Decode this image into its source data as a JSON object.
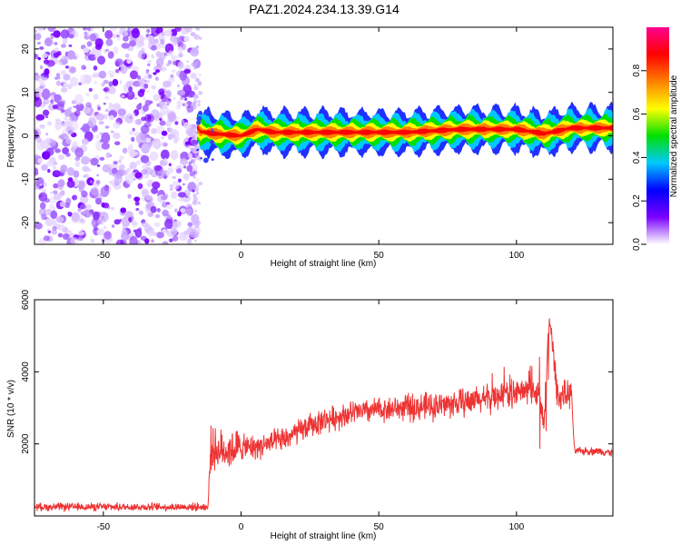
{
  "title": "PAZ1.2024.234.13.39.G14",
  "spectrogram": {
    "xlabel": "Height of straight line (km)",
    "ylabel": "Frequency (Hz)",
    "xlim": [
      -75,
      135
    ],
    "ylim": [
      -25,
      25
    ],
    "xticks": [
      "-50",
      "0",
      "50",
      "100"
    ],
    "xtick_values": [
      -50,
      0,
      50,
      100
    ],
    "yticks": [
      "-20",
      "-10",
      "0",
      "10",
      "20"
    ],
    "ytick_values": [
      -20,
      -10,
      0,
      10,
      20
    ],
    "noise_region_x": [
      -75,
      -16
    ],
    "signal_region_x": [
      -16,
      135
    ],
    "signal_center_hz": [
      {
        "x": -15,
        "y": 1.0
      },
      {
        "x": -10,
        "y": 0.5
      },
      {
        "x": 0,
        "y": 0.0
      },
      {
        "x": 6,
        "y": 1.5
      },
      {
        "x": 12,
        "y": 0.8
      },
      {
        "x": 30,
        "y": 0.8
      },
      {
        "x": 60,
        "y": 0.8
      },
      {
        "x": 80,
        "y": 1.5
      },
      {
        "x": 100,
        "y": 1.5
      },
      {
        "x": 110,
        "y": 0.5
      },
      {
        "x": 120,
        "y": 1.8
      },
      {
        "x": 135,
        "y": 1.8
      }
    ]
  },
  "colorbar": {
    "label": "Normalized spectral amplitude",
    "ticks": [
      "0.0",
      "0.2",
      "0.4",
      "0.6",
      "0.8"
    ],
    "tick_values": [
      0.0,
      0.2,
      0.4,
      0.6,
      0.8
    ],
    "range": [
      0,
      1
    ],
    "stops": [
      "#ffffff",
      "#7a00ff",
      "#0000ff",
      "#00c8ff",
      "#00e000",
      "#ffff00",
      "#ff8000",
      "#ff0000",
      "#ff0090"
    ]
  },
  "chart_data": {
    "type": "line",
    "xlabel": "Height of straight line (km)",
    "ylabel": "SNR (10 * v/v)",
    "xlim": [
      -75,
      135
    ],
    "ylim": [
      0,
      6000
    ],
    "xticks": [
      "-50",
      "0",
      "50",
      "100"
    ],
    "xtick_values": [
      -50,
      0,
      50,
      100
    ],
    "yticks": [
      "2000",
      "4000",
      "6000"
    ],
    "ytick_values": [
      2000,
      4000,
      6000
    ],
    "color": "#ee3333",
    "x": [
      -75,
      -60,
      -40,
      -20,
      -12,
      -11,
      -8,
      0,
      5,
      10,
      15,
      20,
      25,
      30,
      35,
      40,
      50,
      60,
      70,
      80,
      90,
      95,
      100,
      105,
      108,
      110,
      112,
      115,
      120,
      121,
      125,
      130,
      135
    ],
    "y": [
      250,
      250,
      250,
      250,
      250,
      1900,
      1800,
      1900,
      1900,
      2000,
      2100,
      2300,
      2500,
      2650,
      2750,
      2850,
      2950,
      3000,
      3050,
      3150,
      3250,
      3400,
      3400,
      3500,
      3400,
      2600,
      5500,
      3300,
      3400,
      1800,
      1800,
      1800,
      1750
    ]
  }
}
